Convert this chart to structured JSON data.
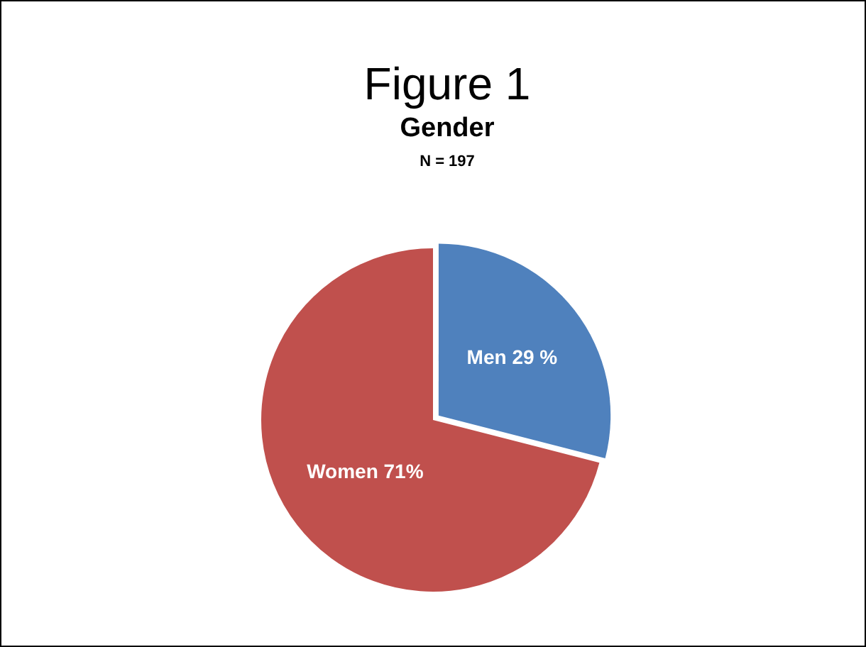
{
  "chart_data": {
    "type": "pie",
    "title": "Figure 1",
    "subtitle": "Gender",
    "annotations": [
      "N = 197"
    ],
    "categories": [
      "Men",
      "Women"
    ],
    "values": [
      29,
      71
    ],
    "colors": [
      "#4f81bd",
      "#c0504d"
    ],
    "value_labels": [
      "29 %",
      "71%"
    ]
  }
}
